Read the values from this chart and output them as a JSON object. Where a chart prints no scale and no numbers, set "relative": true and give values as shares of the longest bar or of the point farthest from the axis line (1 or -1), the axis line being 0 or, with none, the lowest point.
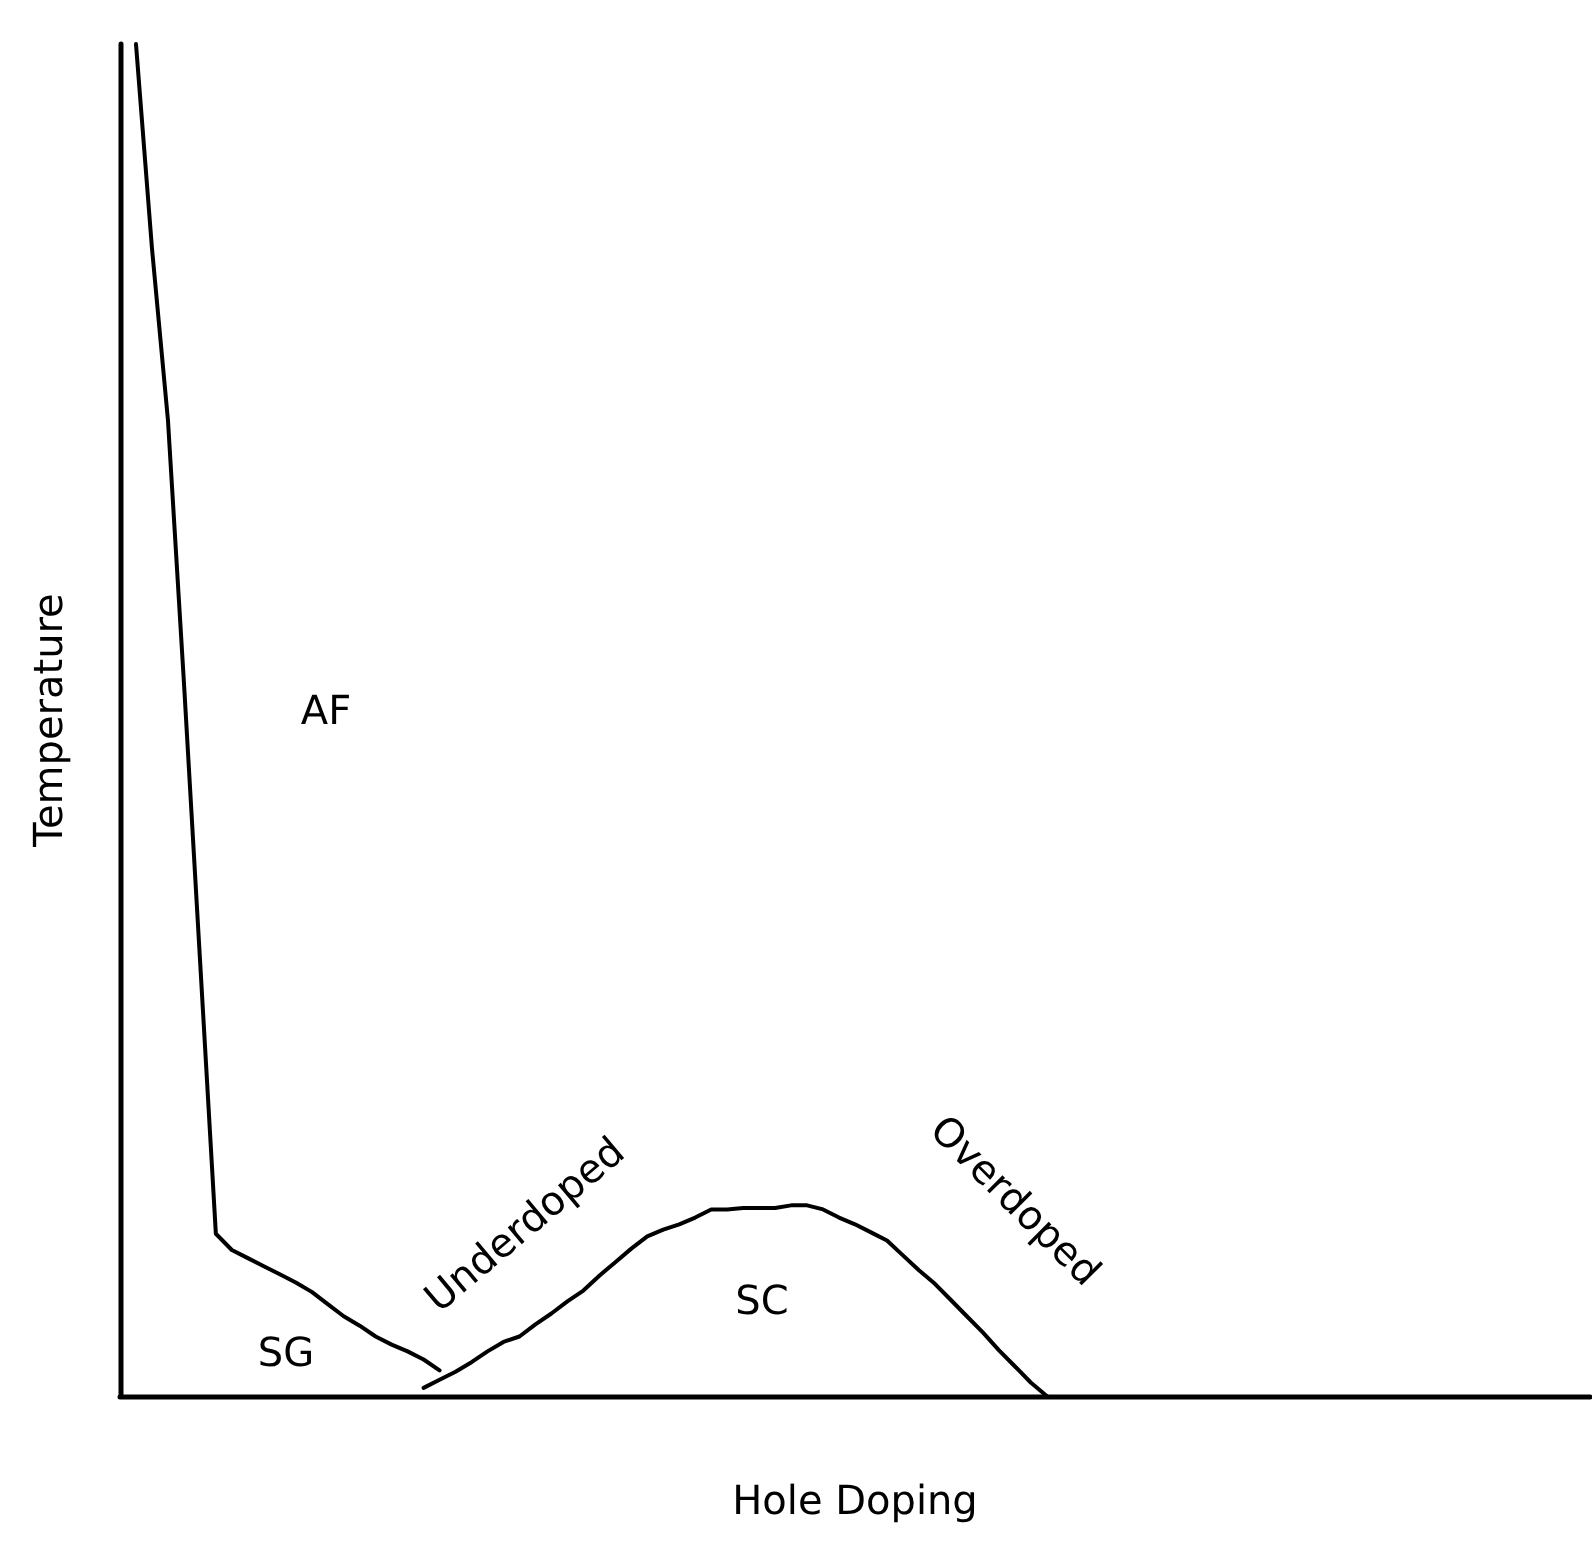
{
  "chart_data": {
    "type": "line",
    "relative": true,
    "xlabel": "Hole Doping",
    "ylabel": "Temperature",
    "tick_labels": false,
    "grid": false,
    "line_style": "solid",
    "categories": [
      null,
      null,
      null,
      null,
      null,
      null,
      null,
      null,
      null,
      null,
      null,
      null,
      null,
      null,
      null,
      null,
      null,
      null,
      null,
      null,
      null,
      null,
      null,
      null,
      null,
      null,
      null,
      null,
      null,
      null,
      null,
      null,
      null,
      null,
      null,
      null,
      null,
      null,
      null,
      null,
      null,
      null,
      null,
      null,
      null,
      null,
      null,
      null,
      null,
      null,
      null,
      null,
      null,
      null,
      null,
      null,
      null,
      null,
      null,
      null,
      null,
      null,
      null,
      null,
      null,
      null,
      null,
      null,
      null,
      null,
      null,
      null,
      null,
      null,
      null,
      null,
      null,
      null,
      null,
      null,
      null,
      null,
      null,
      null,
      null,
      null,
      null,
      null,
      null,
      null,
      null,
      null,
      null
    ],
    "series": [
      {
        "color": "#000000",
        "values": [
          null,
          1.0,
          0.849,
          0.722,
          0.528,
          0.324,
          0.12,
          0.108,
          0.102,
          0.096,
          0.09,
          0.084,
          0.077,
          0.068,
          0.059,
          0.052,
          0.044,
          0.038,
          0.033,
          0.027,
          0.019,
          null,
          null,
          null,
          null,
          null,
          null,
          null,
          null,
          null,
          null,
          null,
          null,
          null,
          null,
          null,
          null,
          null,
          null,
          null,
          null,
          null,
          null,
          null,
          null,
          null,
          null,
          null,
          null,
          null,
          null,
          null,
          null,
          null,
          null,
          null,
          null,
          null,
          null,
          null,
          null,
          null,
          null,
          null,
          null,
          null,
          null,
          null,
          null,
          null,
          null,
          null,
          null,
          null,
          null,
          null,
          null,
          null,
          null,
          null,
          null,
          null,
          null,
          null,
          null,
          null,
          null,
          null,
          null,
          null,
          null,
          null,
          null
        ]
      },
      {
        "color": "#000000",
        "values": [
          null,
          null,
          null,
          null,
          null,
          null,
          null,
          null,
          null,
          null,
          null,
          null,
          null,
          null,
          null,
          null,
          null,
          null,
          null,
          0.006,
          0.012,
          0.018,
          0.025,
          0.033,
          0.04,
          0.044,
          0.053,
          0.061,
          0.07,
          0.078,
          0.089,
          0.099,
          0.109,
          0.118,
          0.123,
          0.127,
          0.132,
          0.138,
          0.138,
          0.139,
          0.139,
          0.139,
          0.141,
          0.141,
          0.138,
          0.132,
          0.127,
          0.121,
          0.115,
          0.104,
          0.093,
          0.083,
          0.071,
          0.059,
          0.047,
          0.034,
          0.022,
          0.01,
          0.0,
          null,
          null,
          null,
          null,
          null,
          null,
          null,
          null,
          null,
          null,
          null,
          null,
          null,
          null,
          null,
          null,
          null,
          null,
          null,
          null,
          null,
          null,
          null,
          null,
          null,
          null,
          null,
          null,
          null,
          null,
          null,
          null,
          null,
          null
        ]
      }
    ],
    "annotations": [
      "AF",
      "SG",
      "SC",
      "Underdoped",
      "Overdoped"
    ]
  }
}
